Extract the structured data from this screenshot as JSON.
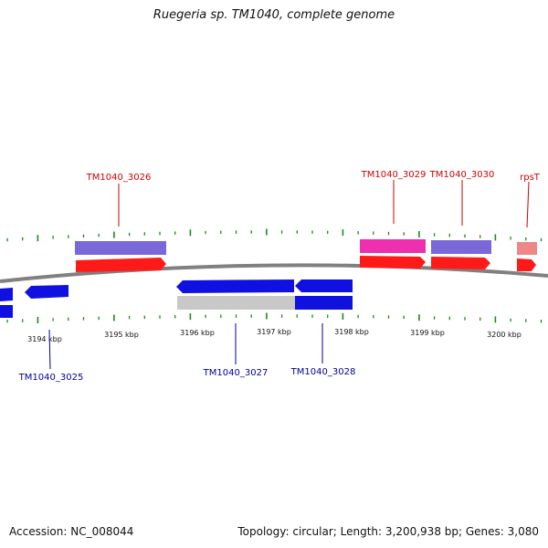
{
  "title": "Ruegeria sp. TM1040, complete genome",
  "footer": {
    "accession": "Accession: NC_008044",
    "topology": "Topology: circular; Length: 3,200,938 bp; Genes: 3,080"
  },
  "colors": {
    "background": "#ffffff",
    "backbone": "#808080",
    "ticks": "#1a8a1a",
    "forward_cds": "#ff1a1a",
    "reverse_cds": "#1010e0",
    "forward_label": "#cc0000",
    "reverse_label": "#000099",
    "lavender_gene": "#7b68d8",
    "magenta_gene": "#ee2fb0",
    "pink_gene": "#ee8888",
    "gray_gene": "#c8c8c8"
  },
  "axis": {
    "tick_labels": [
      "3194 kbp",
      "3195 kbp",
      "3196 kbp",
      "3197 kbp",
      "3198 kbp",
      "3199 kbp",
      "3200 kbp"
    ]
  },
  "forward_genes": [
    {
      "label": "TM1040_3026",
      "feature": "lavender"
    },
    {
      "label": "TM1040_3029",
      "feature": "magenta"
    },
    {
      "label": "TM1040_3030",
      "feature": "lavender"
    },
    {
      "label": "rpsT",
      "feature": "pink"
    }
  ],
  "reverse_genes": [
    {
      "label": "TM1040_3025"
    },
    {
      "label": "TM1040_3027"
    },
    {
      "label": "TM1040_3028"
    }
  ]
}
